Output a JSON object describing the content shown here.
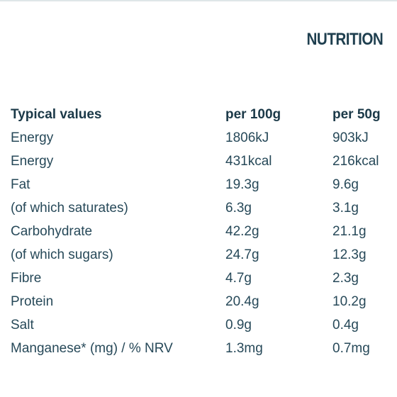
{
  "page": {
    "title": "NUTRITION"
  },
  "table": {
    "headers": [
      "Typical values",
      "per 100g",
      "per 50g"
    ],
    "rows": [
      [
        "Energy",
        "1806kJ",
        "903kJ"
      ],
      [
        "Energy",
        "431kcal",
        "216kcal"
      ],
      [
        "Fat",
        "19.3g",
        "9.6g"
      ],
      [
        "(of which saturates)",
        "6.3g",
        "3.1g"
      ],
      [
        "Carbohydrate",
        "42.2g",
        "21.1g"
      ],
      [
        "(of which sugars)",
        "24.7g",
        "12.3g"
      ],
      [
        "Fibre",
        "4.7g",
        "2.3g"
      ],
      [
        "Protein",
        "20.4g",
        "10.2g"
      ],
      [
        "Salt",
        "0.9g",
        "0.4g"
      ],
      [
        "Manganese* (mg) / % NRV",
        "1.3mg",
        "0.7mg"
      ]
    ]
  },
  "colors": {
    "text": "#1f3f4f",
    "background": "#ffffff",
    "top_rule": "#dfe6e8"
  }
}
